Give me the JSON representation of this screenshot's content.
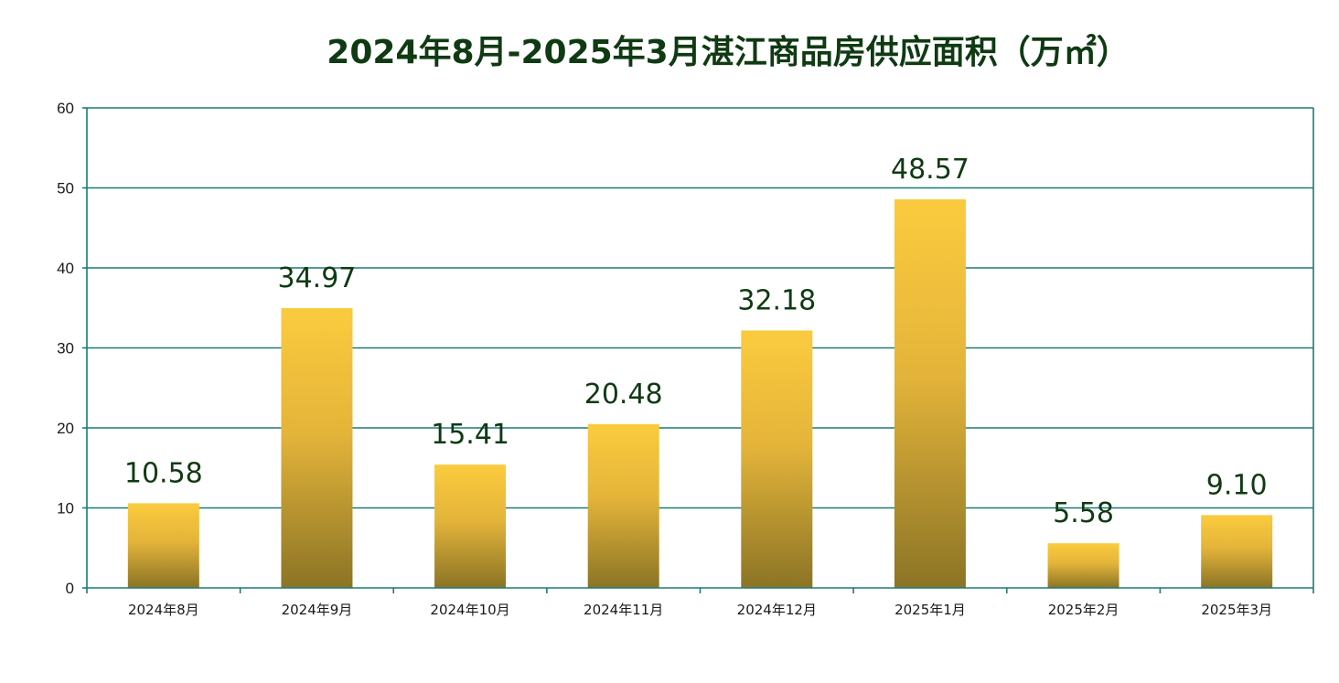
{
  "chart_data": {
    "type": "bar",
    "title": "2024年8月-2025年3月湛江商品房供应面积（万㎡）",
    "xlabel": "",
    "ylabel": "",
    "categories": [
      "2024年8月",
      "2024年9月",
      "2024年10月",
      "2024年11月",
      "2024年12月",
      "2025年1月",
      "2025年2月",
      "2025年3月"
    ],
    "values": [
      10.58,
      34.97,
      15.41,
      20.48,
      32.18,
      48.57,
      5.58,
      9.1
    ],
    "value_labels": [
      "10.58",
      "34.97",
      "15.41",
      "20.48",
      "32.18",
      "48.57",
      "5.58",
      "9.10"
    ],
    "ylim": [
      0,
      60
    ],
    "yticks": [
      0,
      10,
      20,
      30,
      40,
      50,
      60
    ],
    "grid": true,
    "colors": {
      "bar_top": "#fbcb3e",
      "bar_bottom": "#8b7425",
      "axis": "#1d7a7a",
      "gridline": "#1d7a7a",
      "title": "#0f3a12",
      "data_label": "#0f3a12"
    }
  }
}
